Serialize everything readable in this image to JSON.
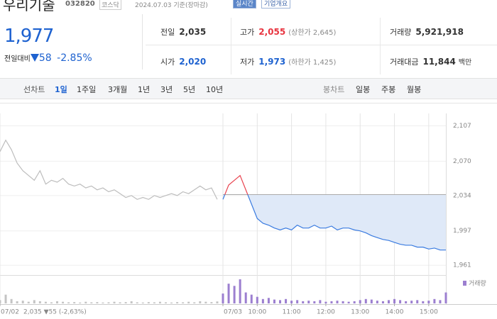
{
  "header": {
    "name": "우리기술",
    "code": "032820",
    "market": "코스닥",
    "date": "2024.07.03 기준(장마감)",
    "buttons": [
      "실시간",
      "기업개요"
    ]
  },
  "quote": {
    "current": "1,977",
    "change_label": "전일대비",
    "change": "58",
    "change_rate": "-2.85%"
  },
  "stats": [
    [
      {
        "label": "전일",
        "value": "2,035"
      },
      {
        "label": "고가",
        "value": "2,055",
        "note": "(상한가 2,645)"
      },
      {
        "label": "거래량",
        "value": "5,921,918"
      }
    ],
    [
      {
        "label": "시가",
        "value": "2,020"
      },
      {
        "label": "저가",
        "value": "1,973",
        "note": "(하한가 1,425)"
      },
      {
        "label": "거래대금",
        "value": "11,844",
        "note": "백만"
      }
    ]
  ],
  "toolbar": {
    "line_chart": "선차트",
    "periods": [
      "1일",
      "1주일",
      "3개월",
      "1년",
      "3년",
      "5년",
      "10년"
    ],
    "candle_chart": "봉차트",
    "candles": [
      "일봉",
      "주봉",
      "월봉"
    ]
  },
  "chart_data": {
    "type": "line",
    "base_value": 2035,
    "summary": "2,035 ▼55 (-2,63%)",
    "xlim": [
      -390,
      390
    ],
    "ylim": [
      1953,
      2120
    ],
    "yticks": [
      {
        "value": 1961,
        "label": "1,961"
      },
      {
        "value": 1997,
        "label": "1,997"
      },
      {
        "value": 2034,
        "label": "2,034"
      },
      {
        "value": 2070,
        "label": "2,070"
      },
      {
        "value": 2107,
        "label": "2,107"
      }
    ],
    "xticks": [
      {
        "value": -390,
        "label": "07/02"
      },
      {
        "value": 0,
        "label": "07/03"
      },
      {
        "value": 60,
        "label": "10:00"
      },
      {
        "value": 120,
        "label": "11:00"
      },
      {
        "value": 180,
        "label": "12:00"
      },
      {
        "value": 240,
        "label": "13:00"
      },
      {
        "value": 300,
        "label": "14:00"
      },
      {
        "value": 360,
        "label": "15:00"
      }
    ],
    "grid": true,
    "series": [
      {
        "color": "#bdbdbd",
        "x": [
          -390,
          -380,
          -370,
          -360,
          -350,
          -340,
          -330,
          -320,
          -310,
          -300,
          -290,
          -280,
          -270,
          -260,
          -250,
          -240,
          -230,
          -220,
          -210,
          -200,
          -190,
          -180,
          -170,
          -160,
          -150,
          -140,
          -130,
          -120,
          -110,
          -100,
          -90,
          -80,
          -70,
          -60,
          -50,
          -40,
          -30,
          -20,
          -10
        ],
        "values": [
          2080,
          2092,
          2082,
          2068,
          2060,
          2055,
          2050,
          2060,
          2046,
          2050,
          2048,
          2052,
          2046,
          2044,
          2046,
          2042,
          2044,
          2040,
          2042,
          2038,
          2040,
          2036,
          2032,
          2034,
          2030,
          2032,
          2030,
          2034,
          2032,
          2034,
          2036,
          2034,
          2038,
          2036,
          2040,
          2044,
          2040,
          2042,
          2030
        ]
      },
      {
        "color": "#3a7be0",
        "up_color": "#e8434f",
        "fill": "#dfe9f8",
        "x": [
          0,
          10,
          20,
          30,
          40,
          50,
          60,
          70,
          80,
          90,
          100,
          110,
          120,
          130,
          140,
          150,
          160,
          170,
          180,
          190,
          200,
          210,
          220,
          230,
          240,
          250,
          260,
          270,
          280,
          290,
          300,
          310,
          320,
          330,
          340,
          350,
          360,
          370,
          380,
          390
        ],
        "values": [
          2030,
          2045,
          2050,
          2055,
          2040,
          2025,
          2010,
          2005,
          2003,
          2000,
          1998,
          2000,
          1998,
          2003,
          2000,
          2000,
          2003,
          2000,
          2000,
          2002,
          1998,
          2000,
          2000,
          1998,
          1997,
          1995,
          1992,
          1990,
          1988,
          1987,
          1985,
          1983,
          1982,
          1982,
          1980,
          1980,
          1978,
          1979,
          1977,
          1977
        ]
      }
    ],
    "volume": {
      "name": "거래량",
      "color": "#9c7fd0",
      "prev_color": "#c4c4c4",
      "x": [
        -390,
        -380,
        -370,
        -360,
        -350,
        -340,
        -330,
        -320,
        -310,
        -300,
        -290,
        -280,
        -270,
        -260,
        -250,
        -240,
        -230,
        -220,
        -210,
        -200,
        -190,
        -180,
        -170,
        -160,
        -150,
        -140,
        -130,
        -120,
        -110,
        -100,
        -90,
        -80,
        -70,
        -60,
        -50,
        -40,
        -30,
        -20,
        -10,
        0,
        10,
        20,
        30,
        40,
        50,
        60,
        70,
        80,
        90,
        100,
        110,
        120,
        130,
        140,
        150,
        160,
        170,
        180,
        190,
        200,
        210,
        220,
        230,
        240,
        250,
        260,
        270,
        280,
        290,
        300,
        310,
        320,
        330,
        340,
        350,
        360,
        370,
        380,
        390
      ],
      "values": [
        30,
        80,
        40,
        20,
        25,
        15,
        30,
        20,
        15,
        10,
        20,
        15,
        10,
        12,
        8,
        15,
        10,
        12,
        8,
        10,
        15,
        10,
        12,
        20,
        10,
        8,
        12,
        10,
        15,
        10,
        8,
        12,
        10,
        15,
        10,
        20,
        15,
        12,
        18,
        90,
        180,
        160,
        220,
        100,
        80,
        60,
        40,
        50,
        35,
        30,
        40,
        25,
        30,
        20,
        25,
        20,
        30,
        15,
        20,
        25,
        20,
        15,
        20,
        30,
        40,
        35,
        25,
        20,
        30,
        40,
        30,
        20,
        25,
        30,
        20,
        25,
        40,
        30,
        100
      ]
    }
  }
}
